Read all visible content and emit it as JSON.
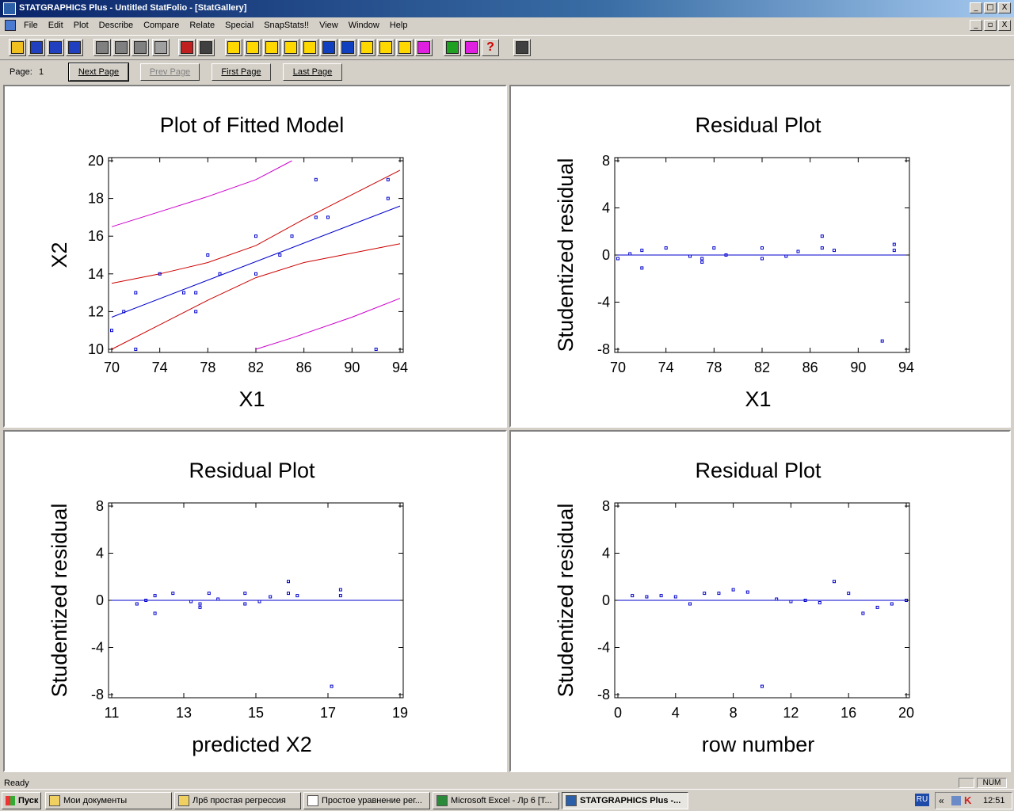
{
  "window": {
    "title": "STATGRAPHICS Plus - Untitled StatFolio - [StatGallery]",
    "buttons": [
      "_",
      "□",
      "X"
    ]
  },
  "menu": {
    "items": [
      "File",
      "Edit",
      "Plot",
      "Describe",
      "Compare",
      "Relate",
      "Special",
      "SnapStats!!",
      "View",
      "Window",
      "Help"
    ],
    "mdi_buttons": [
      "_",
      "▫",
      "X"
    ]
  },
  "toolbar": {
    "buttons": [
      {
        "name": "open-icon",
        "color": "#f0c020"
      },
      {
        "name": "save-icon",
        "color": "#2040c0"
      },
      {
        "name": "grid-icon",
        "color": "#2040c0"
      },
      {
        "name": "datasheet-save-icon",
        "color": "#2040c0"
      },
      {
        "name": "cut-icon",
        "color": "#808080"
      },
      {
        "name": "copy-icon",
        "color": "#808080"
      },
      {
        "name": "paste-icon",
        "color": "#808080"
      },
      {
        "name": "undo-icon",
        "color": "#a0a0a0"
      },
      {
        "name": "print-icon",
        "color": "#c02020"
      },
      {
        "name": "preview-icon",
        "color": "#404040"
      },
      {
        "name": "scatter-icon",
        "color": "#ffd800"
      },
      {
        "name": "boxplot-icon",
        "color": "#ffd800"
      },
      {
        "name": "barchart-icon",
        "color": "#ffd800"
      },
      {
        "name": "xmatrix-icon",
        "color": "#ffd800"
      },
      {
        "name": "regression-icon",
        "color": "#ffd800"
      },
      {
        "name": "timeseries-icon",
        "color": "#1040c0"
      },
      {
        "name": "distribution-icon",
        "color": "#1040c0"
      },
      {
        "name": "line-icon",
        "color": "#ffd800"
      },
      {
        "name": "globe-icon",
        "color": "#ffd800"
      },
      {
        "name": "tree-icon",
        "color": "#ffd800"
      },
      {
        "name": "snapstats-icon",
        "color": "#e020e0"
      },
      {
        "name": "stat-advisor-icon",
        "color": "#20a020"
      },
      {
        "name": "stat-wizard-icon",
        "color": "#e020e0"
      },
      {
        "name": "help-icon",
        "color": "#ffffff"
      },
      {
        "name": "calculator-icon",
        "color": "#404040"
      }
    ]
  },
  "pagebar": {
    "page_label": "Page:",
    "page_number": "1",
    "next": "Next Page",
    "prev": "Prev Page",
    "first": "First Page",
    "last": "Last Page"
  },
  "status": {
    "ready": "Ready",
    "num": "NUM"
  },
  "taskbar": {
    "start": "Пуск",
    "tasks": [
      "Мои документы",
      "Лр6 простая регрессия",
      "Простое уравнение рег...",
      "Microsoft Excel - Лр 6  [T...",
      "STATGRAPHICS Plus -..."
    ],
    "lang": "RU",
    "clock": "12:51"
  },
  "chart_data": [
    {
      "type": "scatter",
      "title": "Plot of Fitted Model",
      "xlabel": "X1",
      "ylabel": "X2",
      "xlim": [
        70,
        94
      ],
      "ylim": [
        10,
        20
      ],
      "xticks": [
        70,
        74,
        78,
        82,
        86,
        90,
        94
      ],
      "yticks": [
        10,
        12,
        14,
        16,
        18,
        20
      ],
      "points": [
        [
          70,
          11
        ],
        [
          71,
          12
        ],
        [
          72,
          13
        ],
        [
          72,
          10
        ],
        [
          74,
          14
        ],
        [
          76,
          13
        ],
        [
          77,
          13
        ],
        [
          77,
          12
        ],
        [
          78,
          15
        ],
        [
          79,
          14
        ],
        [
          82,
          16
        ],
        [
          82,
          14
        ],
        [
          84,
          15
        ],
        [
          85,
          16
        ],
        [
          87,
          19
        ],
        [
          87,
          17
        ],
        [
          88,
          17
        ],
        [
          92,
          10
        ],
        [
          93,
          19
        ],
        [
          93,
          18
        ]
      ],
      "fitted_line": {
        "color": "#0000cc",
        "x": [
          70,
          94
        ],
        "y": [
          11.7,
          17.6
        ]
      },
      "confidence_limits": {
        "color": "#cc0000",
        "x": [
          70,
          74,
          78,
          82,
          86,
          90,
          94
        ],
        "lower": [
          10,
          11.3,
          12.6,
          13.8,
          14.6,
          15.1,
          15.6
        ],
        "upper": [
          13.5,
          14.0,
          14.6,
          15.5,
          16.9,
          18.2,
          19.5
        ]
      },
      "prediction_limits": {
        "color": "#cc00cc",
        "x": [
          70,
          74,
          78,
          82,
          85,
          90,
          94
        ],
        "lower": [
          null,
          null,
          null,
          10.0,
          10.6,
          11.7,
          12.7
        ],
        "upper": [
          16.5,
          17.3,
          18.1,
          19.0,
          20.0,
          null,
          null
        ]
      }
    },
    {
      "type": "scatter",
      "title": "Residual Plot",
      "xlabel": "X1",
      "ylabel": "Studentized residual",
      "xlim": [
        70,
        94
      ],
      "ylim": [
        -8,
        8
      ],
      "xticks": [
        70,
        74,
        78,
        82,
        86,
        90,
        94
      ],
      "yticks": [
        -8,
        -4,
        0,
        4,
        8
      ],
      "points": [
        [
          70,
          -0.3
        ],
        [
          71,
          0.1
        ],
        [
          72,
          0.4
        ],
        [
          72,
          -1.1
        ],
        [
          74,
          0.6
        ],
        [
          76,
          -0.1
        ],
        [
          77,
          -0.3
        ],
        [
          77,
          -0.6
        ],
        [
          78,
          0.6
        ],
        [
          79,
          0.0
        ],
        [
          82,
          0.6
        ],
        [
          82,
          -0.3
        ],
        [
          84,
          -0.1
        ],
        [
          85,
          0.3
        ],
        [
          87,
          1.6
        ],
        [
          87,
          0.6
        ],
        [
          88,
          0.4
        ],
        [
          92,
          -7.3
        ],
        [
          93,
          0.9
        ],
        [
          93,
          0.4
        ]
      ],
      "reference_line": 0
    },
    {
      "type": "scatter",
      "title": "Residual Plot",
      "xlabel": "predicted X2",
      "ylabel": "Studentized residual",
      "xlim": [
        11,
        19
      ],
      "ylim": [
        -8,
        8
      ],
      "xticks": [
        11,
        13,
        15,
        17,
        19
      ],
      "yticks": [
        -8,
        -4,
        0,
        4,
        8
      ],
      "points": [
        [
          11.7,
          -0.3
        ],
        [
          11.95,
          0.0
        ],
        [
          12.2,
          0.4
        ],
        [
          12.2,
          -1.1
        ],
        [
          12.7,
          0.6
        ],
        [
          13.2,
          -0.1
        ],
        [
          13.45,
          -0.3
        ],
        [
          13.45,
          -0.6
        ],
        [
          13.7,
          0.6
        ],
        [
          13.95,
          0.1
        ],
        [
          14.7,
          0.6
        ],
        [
          14.7,
          -0.3
        ],
        [
          15.1,
          -0.1
        ],
        [
          15.4,
          0.3
        ],
        [
          15.9,
          1.6
        ],
        [
          15.9,
          0.6
        ],
        [
          16.15,
          0.4
        ],
        [
          17.1,
          -7.3
        ],
        [
          17.35,
          0.9
        ],
        [
          17.35,
          0.4
        ]
      ],
      "reference_line": 0
    },
    {
      "type": "scatter",
      "title": "Residual Plot",
      "xlabel": "row number",
      "ylabel": "Studentized residual",
      "xlim": [
        0,
        20
      ],
      "ylim": [
        -8,
        8
      ],
      "xticks": [
        0,
        4,
        8,
        12,
        16,
        20
      ],
      "yticks": [
        -8,
        -4,
        0,
        4,
        8
      ],
      "points": [
        [
          1,
          0.4
        ],
        [
          2,
          0.3
        ],
        [
          3,
          0.4
        ],
        [
          4,
          0.3
        ],
        [
          5,
          -0.3
        ],
        [
          6,
          0.6
        ],
        [
          7,
          0.6
        ],
        [
          8,
          0.9
        ],
        [
          9,
          0.7
        ],
        [
          10,
          -7.3
        ],
        [
          11,
          0.1
        ],
        [
          12,
          -0.1
        ],
        [
          13,
          0.0
        ],
        [
          14,
          -0.2
        ],
        [
          15,
          1.6
        ],
        [
          16,
          0.6
        ],
        [
          17,
          -1.1
        ],
        [
          18,
          -0.6
        ],
        [
          19,
          -0.3
        ],
        [
          20,
          0.0
        ]
      ],
      "reference_line": 0
    }
  ]
}
